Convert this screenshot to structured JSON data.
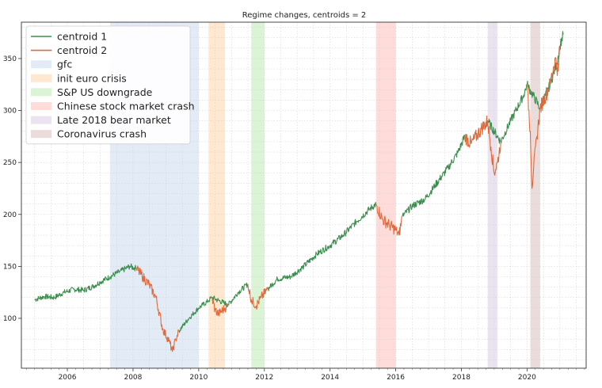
{
  "chart_data": {
    "type": "line",
    "title": "Regime changes, centroids = 2",
    "xlabel": "",
    "ylabel": "",
    "xlim": [
      2004.6,
      2021.8
    ],
    "ylim": [
      52,
      385
    ],
    "grid": true,
    "legend_position": "top-left",
    "x_ticks": [
      2006,
      2008,
      2010,
      2012,
      2014,
      2016,
      2018,
      2020
    ],
    "y_ticks": [
      100,
      150,
      200,
      250,
      300,
      350
    ],
    "colors": {
      "centroid_1": "#3a8f4e",
      "centroid_2": "#e2693a"
    },
    "series": [
      {
        "name": "centroid 1",
        "points": [
          [
            2005.0,
            118
          ],
          [
            2005.3,
            121
          ],
          [
            2005.6,
            120
          ],
          [
            2005.9,
            125
          ],
          [
            2006.2,
            128
          ],
          [
            2006.5,
            127
          ],
          [
            2006.8,
            131
          ],
          [
            2007.0,
            135
          ],
          [
            2007.3,
            140
          ],
          [
            2007.6,
            145
          ],
          [
            2007.9,
            150
          ],
          [
            2008.1,
            148
          ],
          [
            2009.4,
            88
          ],
          [
            2009.7,
            100
          ],
          [
            2010.0,
            110
          ],
          [
            2010.3,
            117
          ],
          [
            2010.4,
            120
          ],
          [
            2010.9,
            113
          ],
          [
            2011.2,
            125
          ],
          [
            2011.5,
            133
          ],
          [
            2012.1,
            128
          ],
          [
            2012.4,
            138
          ],
          [
            2012.8,
            140
          ],
          [
            2013.2,
            150
          ],
          [
            2013.6,
            162
          ],
          [
            2014.0,
            170
          ],
          [
            2014.4,
            180
          ],
          [
            2014.8,
            193
          ],
          [
            2015.2,
            205
          ],
          [
            2015.4,
            210
          ],
          [
            2016.2,
            198
          ],
          [
            2016.5,
            208
          ],
          [
            2016.9,
            215
          ],
          [
            2017.2,
            228
          ],
          [
            2017.6,
            245
          ],
          [
            2017.9,
            260
          ],
          [
            2018.1,
            275
          ],
          [
            2018.7,
            282
          ],
          [
            2018.8,
            290
          ],
          [
            2019.2,
            270
          ],
          [
            2019.5,
            290
          ],
          [
            2019.9,
            315
          ],
          [
            2020.0,
            325
          ],
          [
            2020.4,
            302
          ],
          [
            2020.7,
            325
          ],
          [
            2020.9,
            345
          ],
          [
            2021.0,
            362
          ],
          [
            2021.1,
            373
          ]
        ]
      },
      {
        "name": "centroid 2",
        "points": [
          [
            2008.1,
            148
          ],
          [
            2008.3,
            140
          ],
          [
            2008.5,
            132
          ],
          [
            2008.7,
            120
          ],
          [
            2008.9,
            90
          ],
          [
            2009.1,
            78
          ],
          [
            2009.2,
            68
          ],
          [
            2009.3,
            80
          ],
          [
            2009.4,
            88
          ],
          [
            2010.4,
            120
          ],
          [
            2010.5,
            108
          ],
          [
            2010.6,
            104
          ],
          [
            2010.8,
            110
          ],
          [
            2010.9,
            113
          ],
          [
            2011.5,
            133
          ],
          [
            2011.6,
            118
          ],
          [
            2011.75,
            112
          ],
          [
            2011.9,
            120
          ],
          [
            2012.1,
            128
          ],
          [
            2015.4,
            210
          ],
          [
            2015.6,
            195
          ],
          [
            2015.8,
            190
          ],
          [
            2016.0,
            185
          ],
          [
            2016.1,
            180
          ],
          [
            2016.2,
            198
          ],
          [
            2018.1,
            275
          ],
          [
            2018.3,
            268
          ],
          [
            2018.6,
            282
          ],
          [
            2018.8,
            290
          ],
          [
            2018.9,
            265
          ],
          [
            2019.0,
            240
          ],
          [
            2019.1,
            250
          ],
          [
            2019.2,
            270
          ],
          [
            2020.0,
            325
          ],
          [
            2020.1,
            280
          ],
          [
            2020.15,
            225
          ],
          [
            2020.2,
            245
          ],
          [
            2020.3,
            275
          ],
          [
            2020.4,
            302
          ],
          [
            2020.7,
            325
          ],
          [
            2020.85,
            350
          ],
          [
            2020.95,
            338
          ],
          [
            2021.0,
            362
          ]
        ]
      }
    ],
    "shaded_regions": [
      {
        "name": "gfc",
        "x": [
          2007.3,
          2010.0
        ],
        "color": "#aec7e8"
      },
      {
        "name": "init euro crisis",
        "x": [
          2010.3,
          2010.8
        ],
        "color": "#ffbb78"
      },
      {
        "name": "S&P US downgrade",
        "x": [
          2011.6,
          2012.0
        ],
        "color": "#98df8a"
      },
      {
        "name": "Chinese stock market crash",
        "x": [
          2015.4,
          2016.0
        ],
        "color": "#ff9896"
      },
      {
        "name": "Late 2018 bear market",
        "x": [
          2018.8,
          2019.1
        ],
        "color": "#c5b0d5"
      },
      {
        "name": "Coronavirus crash",
        "x": [
          2020.1,
          2020.4
        ],
        "color": "#c49c94"
      }
    ]
  }
}
